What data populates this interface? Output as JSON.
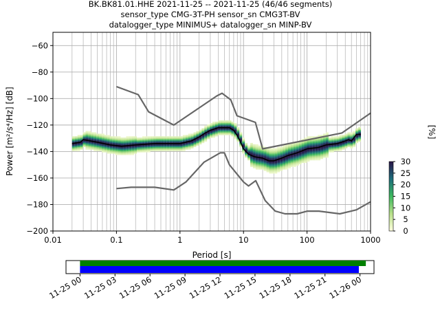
{
  "title": {
    "line1": "BK.BK81.01.HHE   2021-11-25 -- 2021-11-25  (46/46 segments)",
    "line2": "sensor_type CMG-3T-PH sensor_sn CMG3T-BV",
    "line3": "datalogger_type MINIMUS+ datalogger_sn MINP-BV"
  },
  "chart_data": [
    {
      "type": "heatmap",
      "xlabel": "Period [s]",
      "ylabel": "Power [m²/s⁴/Hz] [dB]",
      "xscale": "log",
      "xlim": [
        0.01,
        1000
      ],
      "ylim": [
        -200,
        -50
      ],
      "x_ticks": [
        "0.01",
        "0.1",
        "1",
        "10",
        "100",
        "1000"
      ],
      "y_ticks": [
        "−60",
        "−80",
        "−100",
        "−120",
        "−140",
        "−160",
        "−180",
        "−200"
      ],
      "grid": true,
      "colorbar": {
        "label": "[%]",
        "range": [
          0,
          30
        ],
        "ticks": [
          "0",
          "5",
          "10",
          "15",
          "20",
          "25",
          "30"
        ]
      },
      "nhnm": {
        "period": [
          0.1,
          0.22,
          0.32,
          0.8,
          3.8,
          4.6,
          6.3,
          7.9,
          15.4,
          20,
          354.8,
          1000
        ],
        "db": [
          -91,
          -97,
          -110,
          -120,
          -98,
          -96,
          -101,
          -113,
          -118,
          -138,
          -126,
          -111
        ]
      },
      "nlnm": {
        "period": [
          0.1,
          0.17,
          0.4,
          0.8,
          1.24,
          2.4,
          4.3,
          5,
          6,
          10,
          12,
          15.6,
          21.9,
          31.6,
          45,
          70,
          101,
          154,
          328,
          600,
          1000
        ],
        "db": [
          -168,
          -167,
          -167,
          -169,
          -163,
          -148,
          -141,
          -141,
          -150,
          -163,
          -166,
          -162,
          -177,
          -185,
          -187,
          -187,
          -185,
          -185,
          -187,
          -184,
          -178
        ]
      },
      "mean_psd": {
        "period": [
          0.02,
          0.027,
          0.03,
          0.05,
          0.08,
          0.12,
          0.2,
          0.4,
          0.7,
          1.0,
          1.5,
          2.0,
          2.5,
          3.0,
          4.0,
          5.0,
          6.0,
          7.0,
          8.0,
          9.0,
          10.0,
          12.0,
          15.0,
          20.0,
          25.0,
          30.0,
          40.0,
          50.0,
          70.0,
          100.0,
          150.0,
          200.0,
          300.0,
          400.0,
          450.0,
          500.0,
          600.0,
          700.0
        ],
        "db": [
          -134,
          -133,
          -131,
          -133,
          -135,
          -136,
          -135,
          -134,
          -134,
          -134,
          -132,
          -129,
          -126,
          -124,
          -122,
          -122,
          -122,
          -124,
          -128,
          -133,
          -138,
          -142,
          -144,
          -145,
          -147,
          -147,
          -145,
          -143,
          -141,
          -138,
          -137,
          -135,
          -134,
          -132,
          -131,
          -132,
          -127,
          -127
        ]
      }
    },
    {
      "type": "bar",
      "x_ticks": [
        "11-25 00",
        "11-25 03",
        "11-25 06",
        "11-25 09",
        "11-25 12",
        "11-25 15",
        "11-25 18",
        "11-25 21",
        "11-26 00"
      ],
      "series": [
        {
          "color": "#008000",
          "start_hours": 0,
          "end_hours": 24.5
        },
        {
          "color": "#0000ff",
          "start_hours": 0,
          "end_hours": 23.9
        }
      ],
      "xlim_hours": [
        -1.2,
        25.2
      ]
    }
  ]
}
